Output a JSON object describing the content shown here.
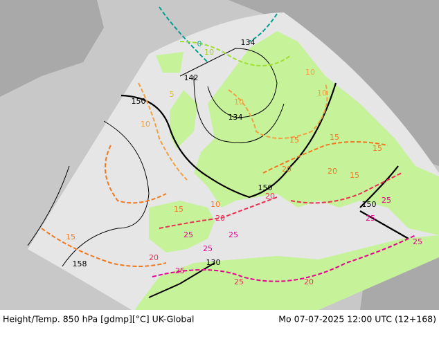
{
  "footer": {
    "left": "Height/Temp. 850 hPa [gdmp][°C] UK-Global",
    "right": "Mo 07-07-2025 12:00 UTC (12+168)"
  },
  "contour_labels": [
    "134",
    "142",
    "134",
    "150",
    "150",
    "150",
    "158",
    "130",
    "0",
    "10",
    "5",
    "10",
    "10",
    "10",
    "10",
    "15",
    "15",
    "15",
    "15",
    "20",
    "20",
    "15",
    "10",
    "15",
    "20",
    "20",
    "20",
    "20",
    "25",
    "25",
    "25",
    "25",
    "25",
    "25",
    "25",
    "25"
  ]
}
